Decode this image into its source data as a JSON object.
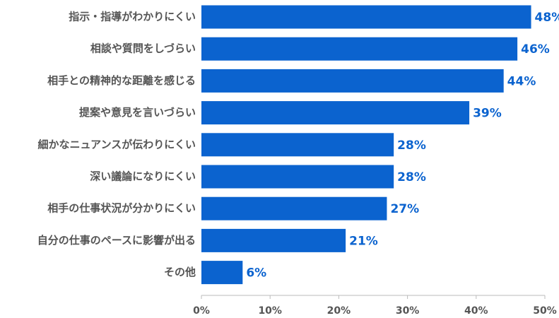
{
  "chart_data": {
    "type": "bar",
    "orientation": "horizontal",
    "categories": [
      "指示・指導がわかりにくい",
      "相談や質問をしづらい",
      "相手との精神的な距離を感じる",
      "提案や意見を言いづらい",
      "細かなニュアンスが伝わりにくい",
      "深い議論になりにくい",
      "相手の仕事状況が分かりにくい",
      "自分の仕事のペースに影響が出る",
      "その他"
    ],
    "values": [
      48,
      46,
      44,
      39,
      28,
      28,
      27,
      21,
      6
    ],
    "value_labels": [
      "48%",
      "46%",
      "44%",
      "39%",
      "28%",
      "28%",
      "27%",
      "21%",
      "6%"
    ],
    "color": "#0b63cf",
    "xlim": [
      0,
      50
    ],
    "xticks": [
      {
        "value": 0,
        "label": "0%"
      },
      {
        "value": 10,
        "label": "10%"
      },
      {
        "value": 20,
        "label": "20%"
      },
      {
        "value": 30,
        "label": "30%"
      },
      {
        "value": 40,
        "label": "40%"
      },
      {
        "value": 50,
        "label": "50%"
      }
    ],
    "grid": false
  }
}
